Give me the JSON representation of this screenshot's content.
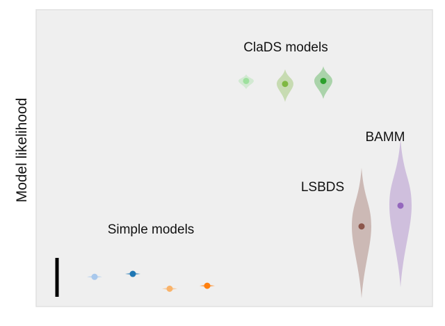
{
  "chart_data": {
    "type": "violin",
    "title": "",
    "xlabel": "",
    "ylabel": "Model likelihood",
    "y_ticks_shown": false,
    "x_ticks_shown": false,
    "grid": false,
    "background": "#efefef",
    "groups": [
      {
        "label": "Simple models",
        "models": [
          {
            "median": 0.1,
            "spread": 0.004,
            "color": "#a8c8ec"
          },
          {
            "median": 0.11,
            "spread": 0.004,
            "color": "#1f77b4"
          },
          {
            "median": 0.06,
            "spread": 0.004,
            "color": "#f9b36a"
          },
          {
            "median": 0.07,
            "spread": 0.004,
            "color": "#ff7f0e"
          }
        ]
      },
      {
        "label": "ClaDS models",
        "models": [
          {
            "median": 0.76,
            "spread": 0.05,
            "color": "#9ee09e"
          },
          {
            "median": 0.75,
            "spread": 0.11,
            "color": "#7fb842"
          },
          {
            "median": 0.76,
            "spread": 0.11,
            "color": "#2ca02c"
          }
        ]
      },
      {
        "label": "LSBDS",
        "models": [
          {
            "median": 0.27,
            "spread": 0.44,
            "color": "#8c564b"
          }
        ]
      },
      {
        "label": "BAMM",
        "models": [
          {
            "median": 0.34,
            "spread": 0.5,
            "color": "#9467bd"
          }
        ]
      }
    ],
    "ylim": [
      0,
      1
    ],
    "scale_bar": true
  },
  "colors": {
    "panel_background": "#efefef",
    "panel_border": "#e0e0e0",
    "scale_bar": "#000000"
  }
}
